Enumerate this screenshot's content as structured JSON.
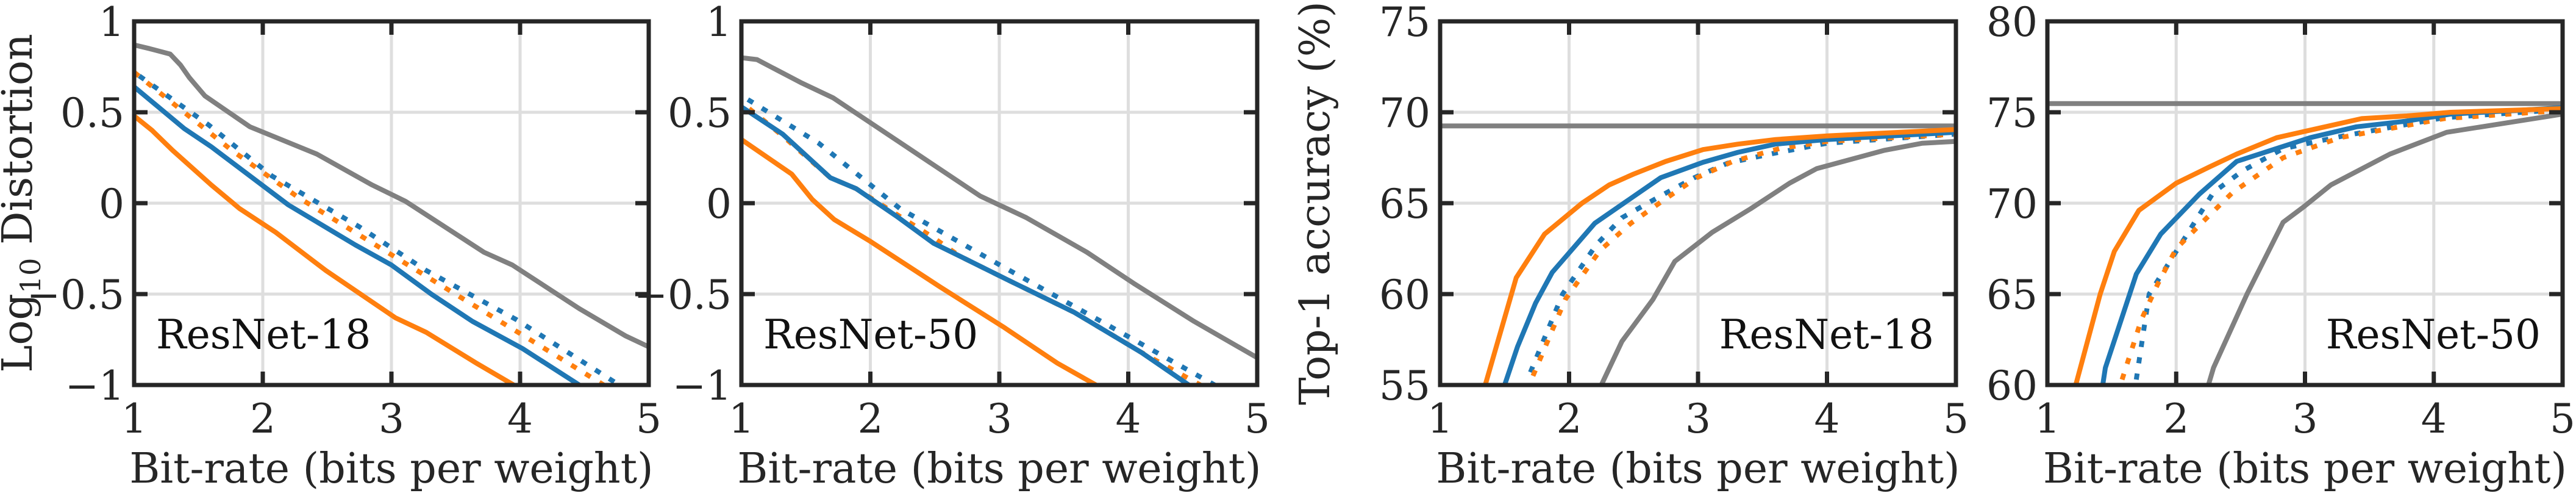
{
  "figure": {
    "colors": {
      "blue": "#1f77b4",
      "orange": "#ff7f0e",
      "gray": "#808080"
    }
  },
  "chart_data": [
    {
      "type": "line",
      "id": "resnet18-distortion",
      "title": "",
      "panel_label": "ResNet-18",
      "panel_label_position": "bottom-left",
      "xlabel": "Bit-rate (bits per weight)",
      "ylabel": "Log10 Distortion",
      "ylabel_main": "Log",
      "ylabel_sub": "10",
      "ylabel_rest": " Distortion",
      "xlim": [
        1,
        5
      ],
      "ylim": [
        -1,
        1
      ],
      "xticks": [
        1,
        2,
        3,
        4,
        5
      ],
      "xtick_labels": [
        "1",
        "2",
        "3",
        "4",
        "5"
      ],
      "yticks": [
        -1,
        -0.5,
        0,
        0.5,
        1
      ],
      "ytick_labels": [
        "−1",
        "−0.5",
        "0",
        "0.5",
        "1"
      ],
      "grid": true,
      "series": [
        {
          "name": "gray-solid",
          "color": "gray",
          "style": "solid",
          "x": [
            1,
            1.12,
            1.28,
            1.36,
            1.43,
            1.55,
            1.9,
            2.42,
            2.85,
            3.11,
            3.72,
            3.94,
            4.46,
            4.82,
            5
          ],
          "y": [
            0.87,
            0.85,
            0.82,
            0.76,
            0.69,
            0.59,
            0.42,
            0.27,
            0.1,
            0.01,
            -0.27,
            -0.34,
            -0.58,
            -0.73,
            -0.79
          ]
        },
        {
          "name": "blue-dotted",
          "color": "blue",
          "style": "dotted",
          "x": [
            1.04,
            1.58,
            2.07,
            2.75,
            3.27,
            3.97,
            4.77
          ],
          "y": [
            0.7,
            0.43,
            0.15,
            -0.13,
            -0.37,
            -0.64,
            -1.0
          ]
        },
        {
          "name": "orange-dotted",
          "color": "orange",
          "style": "dotted",
          "x": [
            1,
            1.76,
            2.28,
            2.9,
            3.45,
            4.1,
            4.65
          ],
          "y": [
            0.72,
            0.29,
            0.03,
            -0.24,
            -0.48,
            -0.76,
            -1.0
          ]
        },
        {
          "name": "blue-solid",
          "color": "blue",
          "style": "solid",
          "x": [
            1,
            1.39,
            1.6,
            2.2,
            2.72,
            3.0,
            3.31,
            3.63,
            4.02,
            4.46
          ],
          "y": [
            0.64,
            0.41,
            0.31,
            -0.01,
            -0.23,
            -0.34,
            -0.5,
            -0.65,
            -0.8,
            -1.0
          ]
        },
        {
          "name": "orange-solid",
          "color": "orange",
          "style": "solid",
          "x": [
            1,
            1.14,
            1.3,
            1.6,
            1.82,
            2.1,
            2.49,
            3.03,
            3.27,
            3.66,
            3.95
          ],
          "y": [
            0.48,
            0.4,
            0.29,
            0.1,
            -0.03,
            -0.16,
            -0.37,
            -0.63,
            -0.71,
            -0.88,
            -1.0
          ]
        }
      ]
    },
    {
      "type": "line",
      "id": "resnet50-distortion",
      "title": "",
      "panel_label": "ResNet-50",
      "panel_label_position": "bottom-left",
      "xlabel": "Bit-rate (bits per weight)",
      "ylabel": "",
      "xlim": [
        1,
        5
      ],
      "ylim": [
        -1,
        1
      ],
      "xticks": [
        1,
        2,
        3,
        4,
        5
      ],
      "xtick_labels": [
        "1",
        "2",
        "3",
        "4",
        "5"
      ],
      "yticks": [
        -1,
        -0.5,
        0,
        0.5,
        1
      ],
      "ytick_labels": [
        "−1",
        "−0.5",
        "0",
        "0.5",
        "1"
      ],
      "grid": true,
      "series": [
        {
          "name": "gray-solid",
          "color": "gray",
          "style": "solid",
          "x": [
            1,
            1.12,
            1.47,
            1.71,
            2.28,
            2.85,
            3.21,
            3.68,
            4.04,
            4.51,
            5
          ],
          "y": [
            0.8,
            0.79,
            0.66,
            0.58,
            0.31,
            0.04,
            -0.08,
            -0.27,
            -0.44,
            -0.65,
            -0.85
          ]
        },
        {
          "name": "blue-dotted",
          "color": "blue",
          "style": "dotted",
          "x": [
            1.05,
            1.6,
            2.23,
            3.03,
            3.84,
            4.67
          ],
          "y": [
            0.57,
            0.33,
            -0.03,
            -0.35,
            -0.67,
            -1.0
          ]
        },
        {
          "name": "orange-dotted",
          "color": "orange",
          "style": "dotted",
          "x": [
            1.06,
            1.32,
            1.69,
            1.89,
            2.2,
            2.49,
            2.69,
            3.06,
            3.58,
            4.1,
            4.56
          ],
          "y": [
            0.52,
            0.37,
            0.14,
            0.08,
            -0.06,
            -0.19,
            -0.29,
            -0.42,
            -0.6,
            -0.82,
            -1.0
          ]
        },
        {
          "name": "blue-solid",
          "color": "blue",
          "style": "solid",
          "x": [
            1,
            1.32,
            1.69,
            1.89,
            2.2,
            2.49,
            2.69,
            3.06,
            3.58,
            4.1,
            4.47
          ],
          "y": [
            0.53,
            0.38,
            0.14,
            0.08,
            -0.07,
            -0.22,
            -0.29,
            -0.42,
            -0.6,
            -0.82,
            -1.0
          ]
        },
        {
          "name": "orange-solid",
          "color": "orange",
          "style": "solid",
          "x": [
            1,
            1.39,
            1.55,
            1.72,
            2.0,
            2.54,
            3.03,
            3.45,
            3.75
          ],
          "y": [
            0.35,
            0.16,
            0.02,
            -0.09,
            -0.21,
            -0.46,
            -0.68,
            -0.88,
            -1.0
          ]
        }
      ]
    },
    {
      "type": "line",
      "id": "resnet18-accuracy",
      "title": "",
      "panel_label": "ResNet-18",
      "panel_label_position": "bottom-right",
      "xlabel": "Bit-rate (bits per weight)",
      "ylabel": "Top-1 accuracy (%)",
      "xlim": [
        1,
        5
      ],
      "ylim": [
        55,
        75
      ],
      "xticks": [
        1,
        2,
        3,
        4,
        5
      ],
      "xtick_labels": [
        "1",
        "2",
        "3",
        "4",
        "5"
      ],
      "yticks": [
        55,
        60,
        65,
        70,
        75
      ],
      "ytick_labels": [
        "55",
        "60",
        "65",
        "70",
        "75"
      ],
      "grid": true,
      "reference_line": {
        "color": "gray",
        "y": 69.25
      },
      "series": [
        {
          "name": "gray-solid",
          "color": "gray",
          "style": "solid",
          "x": [
            2.25,
            2.41,
            2.65,
            2.82,
            3.11,
            3.41,
            3.71,
            3.92,
            4.44,
            4.74,
            5
          ],
          "y": [
            55,
            57.4,
            59.7,
            61.8,
            63.4,
            64.7,
            66.1,
            66.9,
            67.9,
            68.3,
            68.4
          ]
        },
        {
          "name": "blue-dotted",
          "color": "blue",
          "style": "dotted",
          "x": [
            1.7,
            1.95,
            2.21,
            2.41,
            2.71,
            2.97,
            3.23,
            3.56,
            4,
            5
          ],
          "y": [
            55.7,
            60,
            62.7,
            64.2,
            65.4,
            66.4,
            67.2,
            67.7,
            68.3,
            68.8
          ]
        },
        {
          "name": "orange-dotted",
          "color": "orange",
          "style": "dotted",
          "x": [
            1.72,
            1.97,
            2.24,
            2.48,
            2.74,
            2.99,
            3.27,
            3.63,
            4,
            5
          ],
          "y": [
            55.5,
            59.7,
            62.4,
            63.9,
            65.2,
            66.4,
            67.3,
            68.0,
            68.4,
            68.8
          ]
        },
        {
          "name": "blue-solid",
          "color": "blue",
          "style": "solid",
          "x": [
            1.5,
            1.6,
            1.74,
            1.87,
            2.2,
            2.71,
            3.04,
            3.31,
            3.6,
            4,
            5
          ],
          "y": [
            55,
            57.1,
            59.5,
            61.2,
            63.9,
            66.4,
            67.25,
            67.8,
            68.25,
            68.5,
            68.9
          ]
        },
        {
          "name": "orange-solid",
          "color": "orange",
          "style": "solid",
          "x": [
            1.35,
            1.59,
            1.81,
            2.1,
            2.31,
            2.5,
            2.75,
            3.04,
            3.31,
            3.6,
            4,
            5
          ],
          "y": [
            55,
            60.9,
            63.3,
            65.0,
            66.0,
            66.6,
            67.3,
            67.95,
            68.25,
            68.5,
            68.7,
            69.05
          ]
        }
      ]
    },
    {
      "type": "line",
      "id": "resnet50-accuracy",
      "title": "",
      "panel_label": "ResNet-50",
      "panel_label_position": "bottom-right",
      "xlabel": "Bit-rate (bits per weight)",
      "ylabel": "",
      "xlim": [
        1,
        5
      ],
      "ylim": [
        60,
        80
      ],
      "xticks": [
        1,
        2,
        3,
        4,
        5
      ],
      "xtick_labels": [
        "1",
        "2",
        "3",
        "4",
        "5"
      ],
      "yticks": [
        60,
        65,
        70,
        75,
        80
      ],
      "ytick_labels": [
        "60",
        "65",
        "70",
        "75",
        "80"
      ],
      "grid": true,
      "reference_line": {
        "color": "gray",
        "y": 75.48
      },
      "series": [
        {
          "name": "gray-solid",
          "color": "gray",
          "style": "solid",
          "x": [
            2.25,
            2.29,
            2.55,
            2.83,
            2.99,
            3.2,
            3.66,
            4.1,
            5
          ],
          "y": [
            60,
            60.95,
            65,
            68.95,
            69.8,
            71.0,
            72.7,
            73.9,
            74.9
          ]
        },
        {
          "name": "blue-dotted",
          "color": "blue",
          "style": "dotted",
          "x": [
            1.69,
            1.79,
            2.05,
            2.29,
            2.52,
            2.83,
            3.3,
            4.08,
            5
          ],
          "y": [
            60.3,
            65,
            67.9,
            70.6,
            71.8,
            73.0,
            73.7,
            74.7,
            75.15
          ]
        },
        {
          "name": "orange-dotted",
          "color": "orange",
          "style": "dotted",
          "x": [
            1.58,
            1.73,
            1.86,
            2.0,
            2.21,
            2.44,
            2.83,
            3.27,
            4.08,
            5
          ],
          "y": [
            60.3,
            63.6,
            65.6,
            67.5,
            69.0,
            70.6,
            72.5,
            73.6,
            74.65,
            75.1
          ]
        },
        {
          "name": "blue-solid",
          "color": "blue",
          "style": "solid",
          "x": [
            1.43,
            1.45,
            1.69,
            1.88,
            2.18,
            2.47,
            3.04,
            3.4,
            3.77,
            4.13,
            5
          ],
          "y": [
            60,
            60.95,
            66.1,
            68.3,
            70.5,
            72.3,
            73.6,
            74.2,
            74.5,
            74.9,
            75.25
          ]
        },
        {
          "name": "orange-solid",
          "color": "orange",
          "style": "solid",
          "x": [
            1.22,
            1.41,
            1.52,
            1.71,
            2.0,
            2.26,
            2.47,
            2.78,
            3.44,
            3.79,
            4.13,
            5
          ],
          "y": [
            60,
            65,
            67.35,
            69.6,
            71.1,
            72.0,
            72.7,
            73.6,
            74.65,
            74.8,
            75.0,
            75.2
          ]
        }
      ]
    }
  ]
}
